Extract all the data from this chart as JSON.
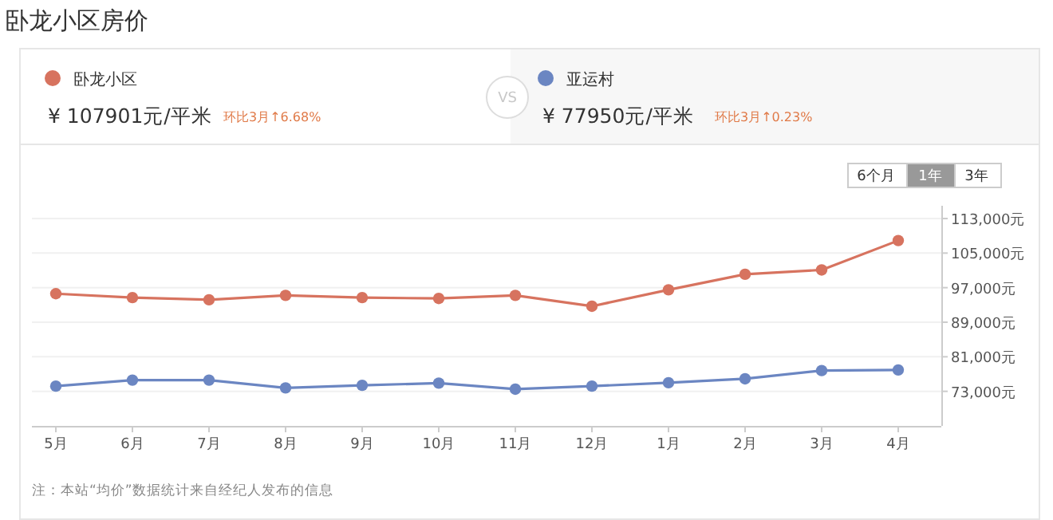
{
  "chart_data": {
    "type": "line",
    "title": "卧龙小区房价",
    "categories": [
      "5月",
      "6月",
      "7月",
      "8月",
      "9月",
      "10月",
      "11月",
      "12月",
      "1月",
      "2月",
      "3月",
      "4月"
    ],
    "series": [
      {
        "name": "卧龙小区",
        "color": "#d7735f",
        "values": [
          95600,
          94700,
          94200,
          95200,
          94700,
          94500,
          95200,
          92700,
          96500,
          100100,
          101100,
          107901
        ]
      },
      {
        "name": "亚运村",
        "color": "#6b86c2",
        "values": [
          74200,
          75600,
          75600,
          73800,
          74400,
          74900,
          73500,
          74200,
          75000,
          75900,
          77800,
          77950
        ]
      }
    ],
    "ylim": [
      65000,
      113000
    ],
    "yticks": [
      {
        "value": 73000,
        "label": "73,000元"
      },
      {
        "value": 81000,
        "label": "81,000元"
      },
      {
        "value": 89000,
        "label": "89,000元"
      },
      {
        "value": 97000,
        "label": "97,000元"
      },
      {
        "value": 105000,
        "label": "105,000元"
      },
      {
        "value": 113000,
        "label": "113,000元"
      }
    ],
    "grid": "y",
    "marker": "circle",
    "legend": "top",
    "annotations": [
      "¥ 107901元/平米",
      "环比3月↑6.68%",
      "VS",
      "¥ 77950元/平米",
      "环比3月↑0.23%",
      "6个月",
      "1年",
      "3年",
      "注：本站“均价”数据统计来自经纪人发布的信息"
    ]
  }
}
